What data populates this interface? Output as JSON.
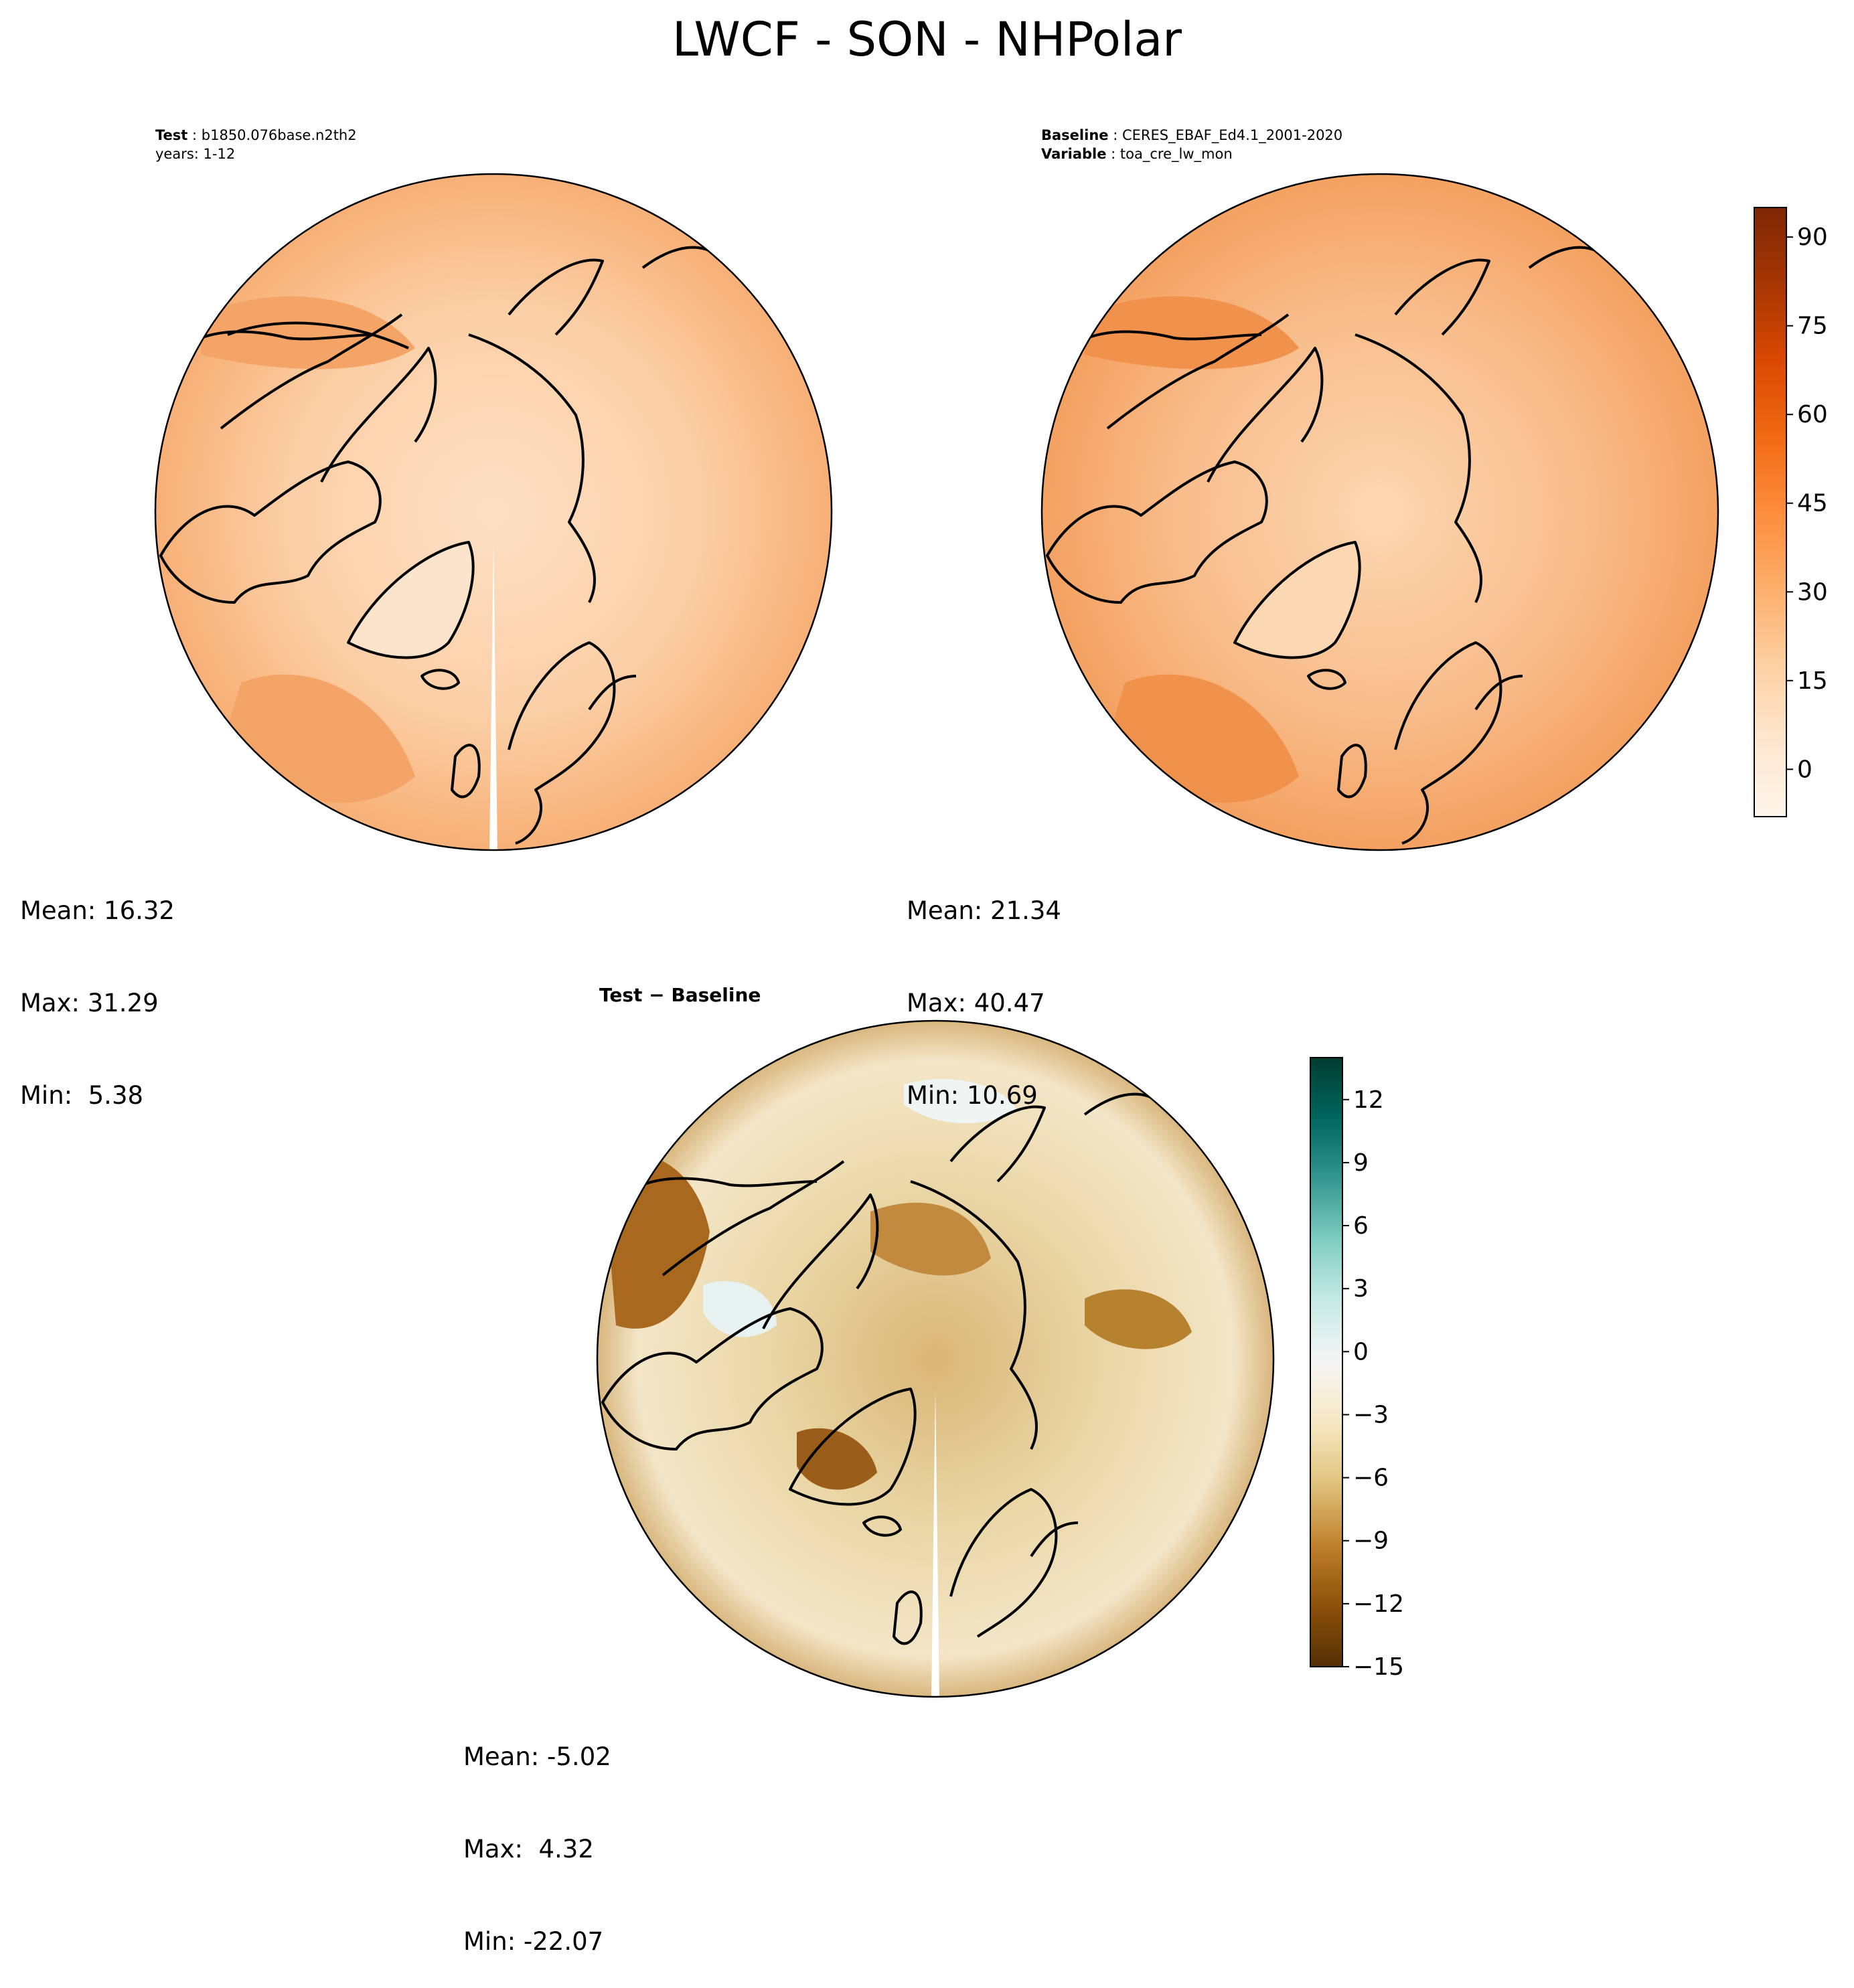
{
  "title": "LWCF - SON - NHPolar",
  "panels": {
    "test": {
      "line1_key": "Test",
      "line1_value": "b1850.076base.n2th2",
      "line2": "years: 1-12",
      "stats": {
        "mean": "Mean: 16.32",
        "max": "Max: 31.29",
        "min": "Min:  5.38"
      },
      "fill_color": "#f9c394"
    },
    "baseline": {
      "line1_key": "Baseline",
      "line1_value": "CERES_EBAF_Ed4.1_2001-2020",
      "line2_key": "Variable",
      "line2_value": "toa_cre_lw_mon",
      "stats": {
        "mean": "Mean: 21.34",
        "max": "Max: 40.47",
        "min": "Min: 10.69"
      },
      "fill_color": "#f6ad75"
    },
    "difference": {
      "title": "Test − Baseline",
      "stats": {
        "mean": "Mean: -5.02",
        "max": "Max:  4.32",
        "min": "Min: -22.07"
      },
      "fill_color": "#dcc08b"
    }
  },
  "colorbars": {
    "absolute": {
      "colormap": "Oranges",
      "ticks": [
        "90",
        "75",
        "60",
        "45",
        "30",
        "15",
        "0"
      ],
      "range": [
        -8,
        95
      ],
      "colors": [
        "#fff5eb",
        "#fee6ce",
        "#fdd0a2",
        "#fdae6b",
        "#fd8d3c",
        "#f16913",
        "#d94801",
        "#a63603",
        "#7f2704"
      ]
    },
    "difference": {
      "colormap": "BrBG",
      "ticks": [
        "12",
        "9",
        "6",
        "3",
        "0",
        "−3",
        "−6",
        "−9",
        "−12",
        "−15"
      ],
      "range": [
        -15,
        14
      ],
      "colors": [
        "#543005",
        "#8c510a",
        "#bf812d",
        "#dfc27d",
        "#f6e8c3",
        "#f5f5f5",
        "#c7eae5",
        "#80cdc1",
        "#35978f",
        "#01665e",
        "#003c30"
      ]
    }
  }
}
